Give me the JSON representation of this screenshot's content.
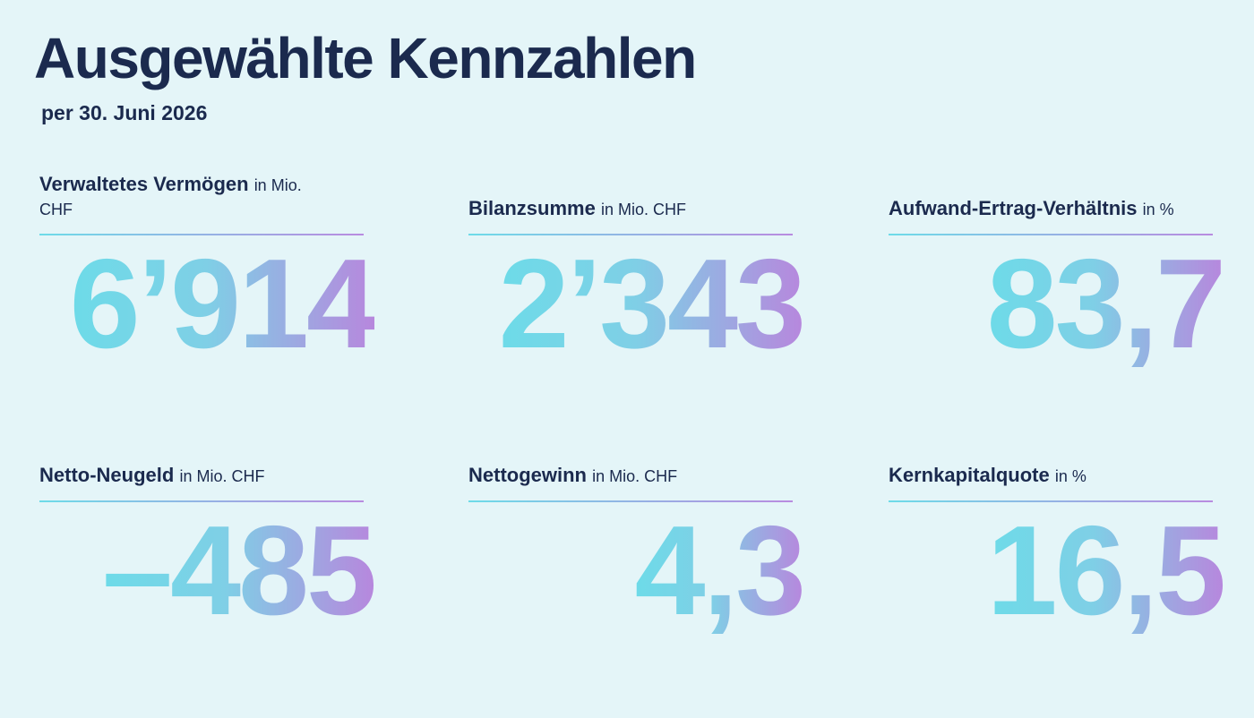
{
  "header": {
    "title": "Ausgewählte Kennzahlen",
    "subtitle": "per 30. Juni 2026"
  },
  "kpis": [
    {
      "label": "Verwaltetes Vermögen",
      "unit": "in Mio. CHF",
      "value": "6’914"
    },
    {
      "label": "Bilanzsumme",
      "unit": "in Mio. CHF",
      "value": "2’343"
    },
    {
      "label": "Aufwand-Ertrag-Verhältnis",
      "unit": "in %",
      "value": "83,7"
    },
    {
      "label": "Netto-Neugeld",
      "unit": "in Mio. CHF",
      "value": "–485"
    },
    {
      "label": "Nettogewinn",
      "unit": "in Mio. CHF",
      "value": "4,3"
    },
    {
      "label": "Kernkapitalquote",
      "unit": "in %",
      "value": "16,5"
    }
  ]
}
